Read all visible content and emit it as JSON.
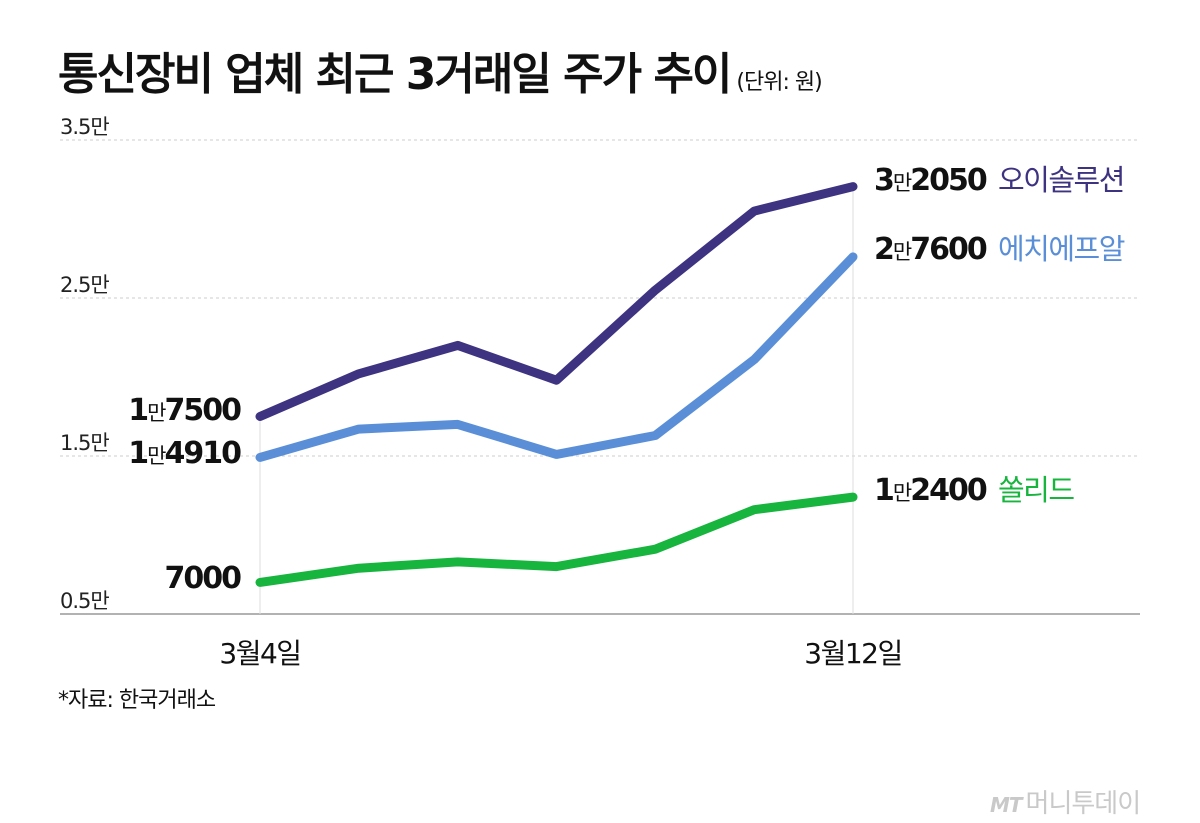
{
  "title": "통신장비 업체 최근 3거래일 주가 추이",
  "unit_label": "(단위: 원)",
  "source": "*자료: 한국거래소",
  "logo": {
    "mark": "MT",
    "text": "머니투데이"
  },
  "colors": {
    "oisolution": "#3d3381",
    "hfr": "#5a8fd8",
    "solid": "#17b43e",
    "grid": "#cccccc",
    "axis": "#999999"
  },
  "chart_data": {
    "type": "line",
    "title": "통신장비 업체 최근 3거래일 주가 추이",
    "unit": "원",
    "ylim": [
      5000,
      35000
    ],
    "yticks": [
      {
        "value": 35000,
        "label": "3.5만"
      },
      {
        "value": 25000,
        "label": "2.5만"
      },
      {
        "value": 15000,
        "label": "1.5만"
      },
      {
        "value": 5000,
        "label": "0.5만"
      }
    ],
    "x_count": 7,
    "x_labels": [
      {
        "index": 0,
        "label": "3월4일"
      },
      {
        "index": 6,
        "label": "3월12일"
      }
    ],
    "grid": "horizontal dashed",
    "series": [
      {
        "key": "oisolution",
        "name": "오이솔루션",
        "values": [
          17500,
          20200,
          22000,
          19800,
          25500,
          30500,
          32050
        ],
        "start_label": {
          "big": "1",
          "small": "만",
          "rest": "7500"
        },
        "end_label": {
          "big": "3",
          "small": "만",
          "rest": "2050"
        }
      },
      {
        "key": "hfr",
        "name": "에치에프알",
        "values": [
          14910,
          16700,
          17000,
          15100,
          16300,
          21100,
          27600
        ],
        "start_label": {
          "big": "1",
          "small": "만",
          "rest": "4910"
        },
        "end_label": {
          "big": "2",
          "small": "만",
          "rest": "7600"
        }
      },
      {
        "key": "solid",
        "name": "쏠리드",
        "values": [
          7000,
          7900,
          8300,
          8000,
          9100,
          11600,
          12400
        ],
        "start_label": {
          "big": "",
          "small": "",
          "rest": "7000"
        },
        "end_label": {
          "big": "1",
          "small": "만",
          "rest": "2400"
        }
      }
    ]
  }
}
